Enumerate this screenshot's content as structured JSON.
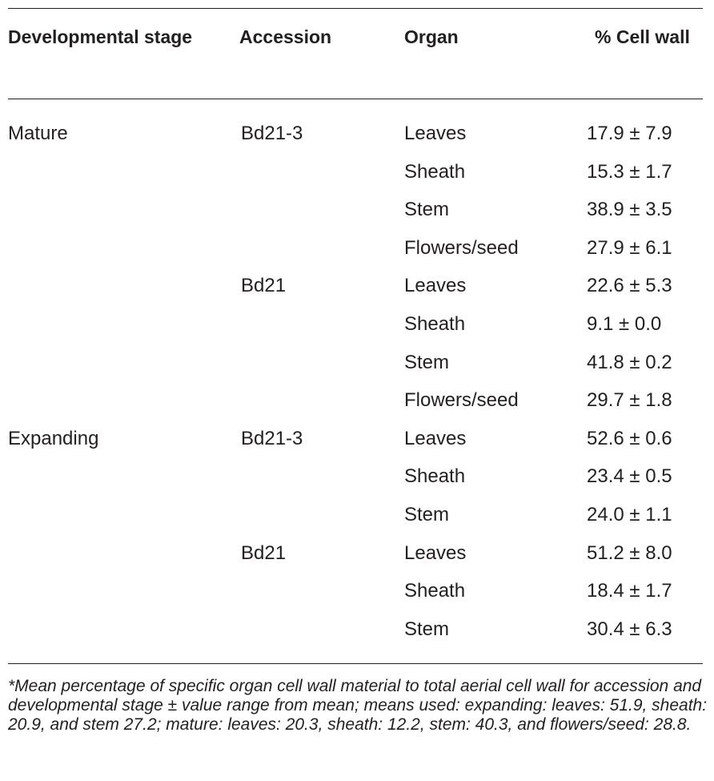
{
  "table": {
    "headers": [
      "Developmental stage",
      "Accession",
      "Organ",
      "% Cell wall"
    ],
    "rows": [
      {
        "stage": "Mature",
        "accession": "Bd21-3",
        "organ": "Leaves",
        "cell_wall": "17.9 ± 7.9"
      },
      {
        "stage": "",
        "accession": "",
        "organ": "Sheath",
        "cell_wall": "15.3 ± 1.7"
      },
      {
        "stage": "",
        "accession": "",
        "organ": "Stem",
        "cell_wall": "38.9 ± 3.5"
      },
      {
        "stage": "",
        "accession": "",
        "organ": "Flowers/seed",
        "cell_wall": "27.9 ± 6.1"
      },
      {
        "stage": "",
        "accession": "Bd21",
        "organ": "Leaves",
        "cell_wall": "22.6 ± 5.3"
      },
      {
        "stage": "",
        "accession": "",
        "organ": "Sheath",
        "cell_wall": "9.1 ± 0.0"
      },
      {
        "stage": "",
        "accession": "",
        "organ": "Stem",
        "cell_wall": "41.8 ± 0.2"
      },
      {
        "stage": "",
        "accession": "",
        "organ": "Flowers/seed",
        "cell_wall": "29.7 ± 1.8"
      },
      {
        "stage": "Expanding",
        "accession": "Bd21-3",
        "organ": "Leaves",
        "cell_wall": "52.6 ± 0.6"
      },
      {
        "stage": "",
        "accession": "",
        "organ": "Sheath",
        "cell_wall": "23.4 ± 0.5"
      },
      {
        "stage": "",
        "accession": "",
        "organ": "Stem",
        "cell_wall": "24.0 ± 1.1"
      },
      {
        "stage": "",
        "accession": "Bd21",
        "organ": "Leaves",
        "cell_wall": "51.2 ± 8.0"
      },
      {
        "stage": "",
        "accession": "",
        "organ": "Sheath",
        "cell_wall": "18.4 ± 1.7"
      },
      {
        "stage": "",
        "accession": "",
        "organ": "Stem",
        "cell_wall": "30.4 ± 6.3"
      }
    ],
    "footnote": "*Mean percentage of specific organ cell wall material to total aerial cell wall for accession and developmental stage ± value range from mean; means used: expanding: leaves: 51.9, sheath: 20.9, and stem 27.2; mature: leaves: 20.3, sheath: 12.2, stem: 40.3, and flowers/seed: 28.8."
  }
}
